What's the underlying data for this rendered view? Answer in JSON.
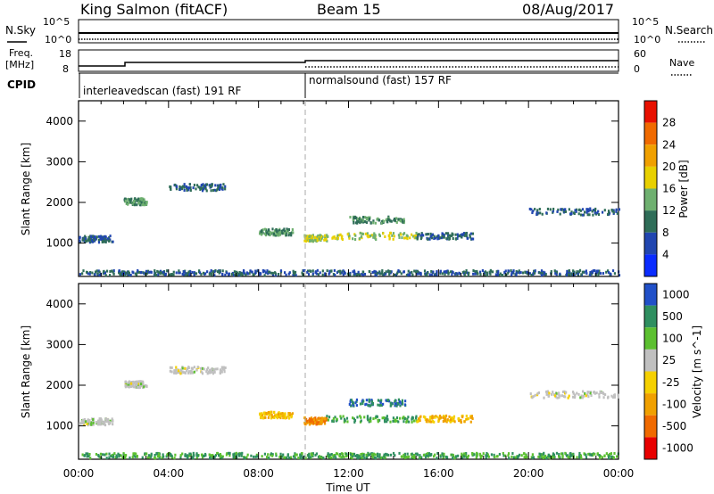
{
  "header": {
    "station": "King Salmon (fitACF)",
    "beam": "Beam 15",
    "date": "08/Aug/2017"
  },
  "top_panels": {
    "nsky_label": "N.Sky",
    "nsearch_label": "N.Search",
    "noise_ticks": [
      "10^5",
      "10^0"
    ],
    "freq_label": "Freq.",
    "freq_unit": "[MHz]",
    "freq_ticks": [
      "18",
      "8"
    ],
    "nave_label": "Nave",
    "nave_ticks": [
      "60",
      "0"
    ],
    "cpid_label": "CPID",
    "cpid_segments": [
      {
        "label": "interleavedscan (fast) 191 RF",
        "start": "00:00",
        "end": "10:00"
      },
      {
        "label": "normalsound (fast) 157 RF",
        "start": "10:00",
        "end": "24:00"
      }
    ]
  },
  "colors": {
    "power": [
      "#0a2cff",
      "#2146b0",
      "#2f6d58",
      "#6fb070",
      "#e8d000",
      "#f0a000",
      "#f06a00",
      "#e81000"
    ],
    "velocity": [
      "#e80000",
      "#f06a00",
      "#f0a000",
      "#f5d000",
      "#c0c0c0",
      "#5cc030",
      "#2f8f60",
      "#2150c8"
    ]
  },
  "chart_data": [
    {
      "type": "heatmap",
      "name": "power",
      "ylabel": "Slant Range [km]",
      "xlabel": "",
      "xlim": [
        "00:00",
        "24:00"
      ],
      "ylim": [
        180,
        4500
      ],
      "yticks": [
        1000,
        2000,
        3000,
        4000
      ],
      "colorbar": {
        "label": "Power [dB]",
        "ticks": [
          4,
          8,
          12,
          16,
          20,
          24,
          28
        ]
      },
      "scatter_regions": [
        {
          "start": "00:00",
          "end": "01:30",
          "range_km": 1130,
          "value": 8
        },
        {
          "start": "02:00",
          "end": "03:00",
          "range_km": 2050,
          "value": 12
        },
        {
          "start": "04:00",
          "end": "06:30",
          "range_km": 2400,
          "value": 8
        },
        {
          "start": "08:00",
          "end": "09:30",
          "range_km": 1300,
          "value": 12
        },
        {
          "start": "10:00",
          "end": "11:00",
          "range_km": 1150,
          "value": 16
        },
        {
          "start": "11:00",
          "end": "15:00",
          "range_km": 1200,
          "value": 16
        },
        {
          "start": "12:00",
          "end": "14:30",
          "range_km": 1600,
          "value": 12
        },
        {
          "start": "15:00",
          "end": "17:30",
          "range_km": 1200,
          "value": 8
        },
        {
          "start": "20:00",
          "end": "24:00",
          "range_km": 1800,
          "value": 8
        },
        {
          "start": "00:00",
          "end": "24:00",
          "range_km": 300,
          "value": 8
        }
      ]
    },
    {
      "type": "heatmap",
      "name": "velocity",
      "ylabel": "Slant Range [km]",
      "xlabel": "Time UT",
      "xlim": [
        "00:00",
        "24:00"
      ],
      "ylim": [
        180,
        4500
      ],
      "yticks": [
        1000,
        2000,
        3000,
        4000
      ],
      "xticks": [
        "00:00",
        "04:00",
        "08:00",
        "12:00",
        "16:00",
        "20:00",
        "00:00"
      ],
      "colorbar": {
        "label": "Velocity [m s^-1]",
        "ticks": [
          1000,
          500,
          100,
          25,
          -25,
          -100,
          -500,
          -1000
        ]
      },
      "scatter_regions": [
        {
          "start": "00:00",
          "end": "01:30",
          "range_km": 1130,
          "value": 0
        },
        {
          "start": "02:00",
          "end": "03:00",
          "range_km": 2050,
          "value": 0
        },
        {
          "start": "04:00",
          "end": "06:30",
          "range_km": 2400,
          "value": 0
        },
        {
          "start": "08:00",
          "end": "09:30",
          "range_km": 1300,
          "value": -100
        },
        {
          "start": "10:00",
          "end": "11:00",
          "range_km": 1150,
          "value": -500
        },
        {
          "start": "11:00",
          "end": "15:00",
          "range_km": 1200,
          "value": 100
        },
        {
          "start": "12:00",
          "end": "14:30",
          "range_km": 1600,
          "value": 500
        },
        {
          "start": "15:00",
          "end": "17:30",
          "range_km": 1200,
          "value": -100
        },
        {
          "start": "20:00",
          "end": "24:00",
          "range_km": 1800,
          "value": 0
        },
        {
          "start": "00:00",
          "end": "24:00",
          "range_km": 300,
          "value": 100
        }
      ]
    }
  ]
}
